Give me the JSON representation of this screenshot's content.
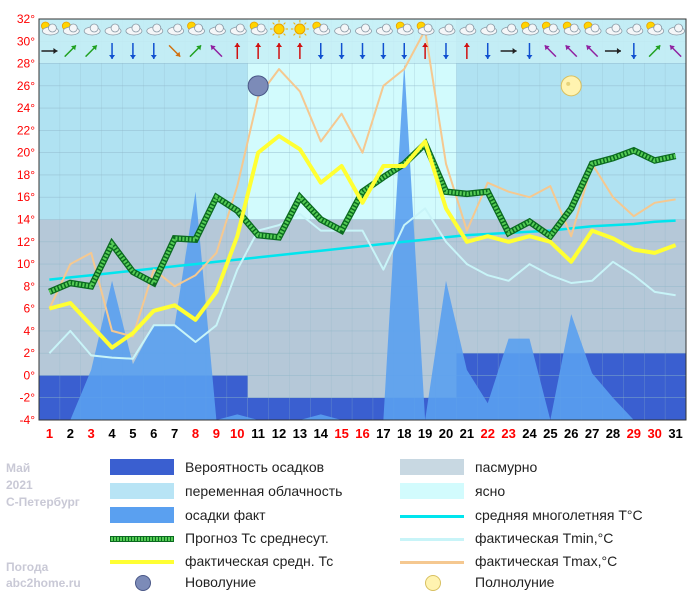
{
  "chart_data": {
    "type": "line",
    "x": [
      1,
      2,
      3,
      4,
      5,
      6,
      7,
      8,
      9,
      10,
      11,
      12,
      13,
      14,
      15,
      16,
      17,
      18,
      19,
      20,
      21,
      22,
      23,
      24,
      25,
      26,
      27,
      28,
      29,
      30,
      31
    ],
    "day_colors": [
      "#ff0000",
      "#000000",
      "#ff0000",
      "#000000",
      "#000000",
      "#000000",
      "#000000",
      "#ff0000",
      "#ff0000",
      "#ff0000",
      "#000000",
      "#000000",
      "#000000",
      "#000000",
      "#ff0000",
      "#ff0000",
      "#000000",
      "#000000",
      "#000000",
      "#000000",
      "#000000",
      "#ff0000",
      "#ff0000",
      "#000000",
      "#000000",
      "#000000",
      "#000000",
      "#000000",
      "#ff0000",
      "#ff0000",
      "#000000"
    ],
    "y_ticks": [
      "32°",
      "30°",
      "28°",
      "26°",
      "24°",
      "22°",
      "20°",
      "18°",
      "16°",
      "14°",
      "12°",
      "10°",
      "8°",
      "6°",
      "4°",
      "2°",
      "0°",
      "-2°",
      "-4°"
    ],
    "ylim": [
      -4,
      32
    ],
    "cloud_bands": [
      {
        "from": 0.5,
        "to": 10.5,
        "kind": "переменная облачность"
      },
      {
        "from": 10.5,
        "to": 20.5,
        "kind": "ясно"
      },
      {
        "from": 20.5,
        "to": 31.5,
        "kind": "переменная облачность"
      }
    ],
    "overcast_band_y": [
      -4,
      14
    ],
    "precip_probability": [
      {
        "from": 0.5,
        "to": 10.5,
        "value": 0
      },
      {
        "from": 10.5,
        "to": 20.5,
        "value": -2
      },
      {
        "from": 20.5,
        "to": 31.5,
        "value": 2
      }
    ],
    "series": [
      {
        "name": "осадки факт",
        "color": "#5aa0f0",
        "values": [
          -4,
          -4,
          0.5,
          8.5,
          1,
          4.5,
          4.5,
          16.5,
          -4,
          -3.5,
          -4,
          -4,
          -4,
          -3.5,
          -4,
          -4,
          -4,
          28,
          -4,
          8.5,
          0.5,
          -2.5,
          3.3,
          3.3,
          -4,
          5.5,
          0.2,
          -2,
          -4,
          -4,
          -4
        ]
      },
      {
        "name": "средняя многолетняя Т°С",
        "color": "#00e5ee",
        "values": [
          8.6,
          8.8,
          9.0,
          9.2,
          9.4,
          9.6,
          9.8,
          10.0,
          10.2,
          10.4,
          10.6,
          10.8,
          11.0,
          11.2,
          11.4,
          11.6,
          11.8,
          12.0,
          12.2,
          12.4,
          12.6,
          12.7,
          12.8,
          12.9,
          13.0,
          13.2,
          13.4,
          13.5,
          13.6,
          13.8,
          13.9
        ]
      },
      {
        "name": "фактическая Tmin,°C",
        "color": "#c8f4f8",
        "values": [
          2,
          4,
          1.8,
          1.6,
          1.5,
          4.5,
          4.5,
          3,
          4.5,
          9.5,
          13,
          13.5,
          14.5,
          13,
          13,
          13,
          9.5,
          13.5,
          15,
          12,
          10,
          9,
          8.5,
          10,
          9,
          8.3,
          8.5,
          10.2,
          9,
          7.5,
          7.2
        ]
      },
      {
        "name": "фактическая Tmax,°C",
        "color": "#f5c890",
        "values": [
          6,
          10,
          11,
          4,
          3.5,
          9.5,
          8,
          9,
          11,
          17,
          25,
          27.5,
          25.5,
          21,
          23.5,
          20,
          26,
          27.5,
          31,
          19,
          13,
          17.3,
          16.5,
          16,
          17,
          12.5,
          19,
          16,
          14.3,
          15.5,
          15.8
        ]
      },
      {
        "name": "Прогноз Тс среднесут.",
        "color": "#33aa33",
        "values": [
          7.5,
          8.3,
          8.0,
          11.8,
          9.3,
          8.3,
          12.3,
          12.2,
          16.0,
          14.8,
          12.6,
          12.4,
          16.0,
          14.0,
          13.0,
          16.5,
          17.8,
          19.0,
          20.8,
          16.5,
          16.3,
          16.5,
          12.8,
          13.8,
          12.5,
          15.0,
          19.0,
          19.5,
          20.2,
          19.3,
          19.7
        ]
      },
      {
        "name": "фактическая средн. Тс",
        "color": "#ffff33",
        "values": [
          6.0,
          6.5,
          4.5,
          2.5,
          3.8,
          5.8,
          6.3,
          5.0,
          7.5,
          12.5,
          20.0,
          21.5,
          20.3,
          17.3,
          18.8,
          15.5,
          18.8,
          18.8,
          21.0,
          15.0,
          12.0,
          12.5,
          12.0,
          12.5,
          12.0,
          10.2,
          13.0,
          12.3,
          11.3,
          11.0,
          11.7
        ]
      }
    ],
    "moons": [
      {
        "day": 11,
        "kind": "Новолуние"
      },
      {
        "day": 26,
        "kind": "Полнолуние"
      }
    ],
    "weather_icons": [
      "partly-cloudy",
      "partly-cloudy",
      "overcast",
      "overcast",
      "overcast",
      "overcast",
      "overcast",
      "partly-cloudy",
      "overcast",
      "overcast",
      "partly-cloudy",
      "sunny",
      "sunny",
      "partly-cloudy",
      "overcast",
      "overcast",
      "overcast",
      "partly-cloudy",
      "partly-cloudy",
      "overcast",
      "overcast",
      "overcast",
      "overcast",
      "partly-cloudy",
      "partly-cloudy",
      "partly-cloudy",
      "partly-cloudy",
      "overcast",
      "overcast",
      "partly-cloudy",
      "overcast"
    ],
    "wind_arrows": [
      "east",
      "north-east",
      "north-east",
      "south",
      "south",
      "south",
      "south-east",
      "north-east",
      "north-west",
      "north",
      "north",
      "north",
      "north",
      "south",
      "south",
      "south",
      "south",
      "south",
      "north",
      "south",
      "north",
      "south",
      "east",
      "south",
      "north-west",
      "north-west",
      "north-west",
      "east",
      "south",
      "north-east",
      "north-west"
    ],
    "colors": {
      "precip_probability": "#3a5fd0",
      "partly_cloudy": "#b0e2f2",
      "clear": "#d2fbfd",
      "overcast": "#b5c8d8",
      "precip_fact": "#5aa0f0",
      "forecast": "#33aa33",
      "fact_avg": "#ffff33",
      "norm": "#00e5ee",
      "tmin": "#c8f4f8",
      "tmax": "#f5c890"
    }
  },
  "legend": [
    {
      "label": "Вероятность осадков",
      "swatch": "#3a5fd0",
      "kind": "box"
    },
    {
      "label": "пасмурно",
      "swatch": "#c8d8e2",
      "kind": "box"
    },
    {
      "label": "переменная облачность",
      "swatch": "#b8e4f5",
      "kind": "box"
    },
    {
      "label": "ясно",
      "swatch": "#d2fbfd",
      "kind": "box"
    },
    {
      "label": "осадки факт",
      "swatch": "#5aa0f0",
      "kind": "box"
    },
    {
      "label": "средняя многолетняя Т°С",
      "swatch": "#00e5ee",
      "kind": "line"
    },
    {
      "label": "Прогноз Тс среднесут.",
      "swatch": "#33aa33",
      "kind": "dotted"
    },
    {
      "label": "фактическая Tmin,°C",
      "swatch": "#c8f4f8",
      "kind": "line"
    },
    {
      "label": "фактическая средн. Тс",
      "swatch": "#ffff33",
      "kind": "thick"
    },
    {
      "label": "фактическая Tmax,°C",
      "swatch": "#f5c890",
      "kind": "line"
    },
    {
      "label": "Новолуние",
      "swatch": "new-moon-icon",
      "kind": "moon-new"
    },
    {
      "label": "Полнолуние",
      "swatch": "full-moon-icon",
      "kind": "moon-full"
    }
  ],
  "watermark": {
    "month": "Май",
    "year": "2021",
    "city": "С-Петербург",
    "site1": "Погода",
    "site2": "abc2home.ru"
  }
}
